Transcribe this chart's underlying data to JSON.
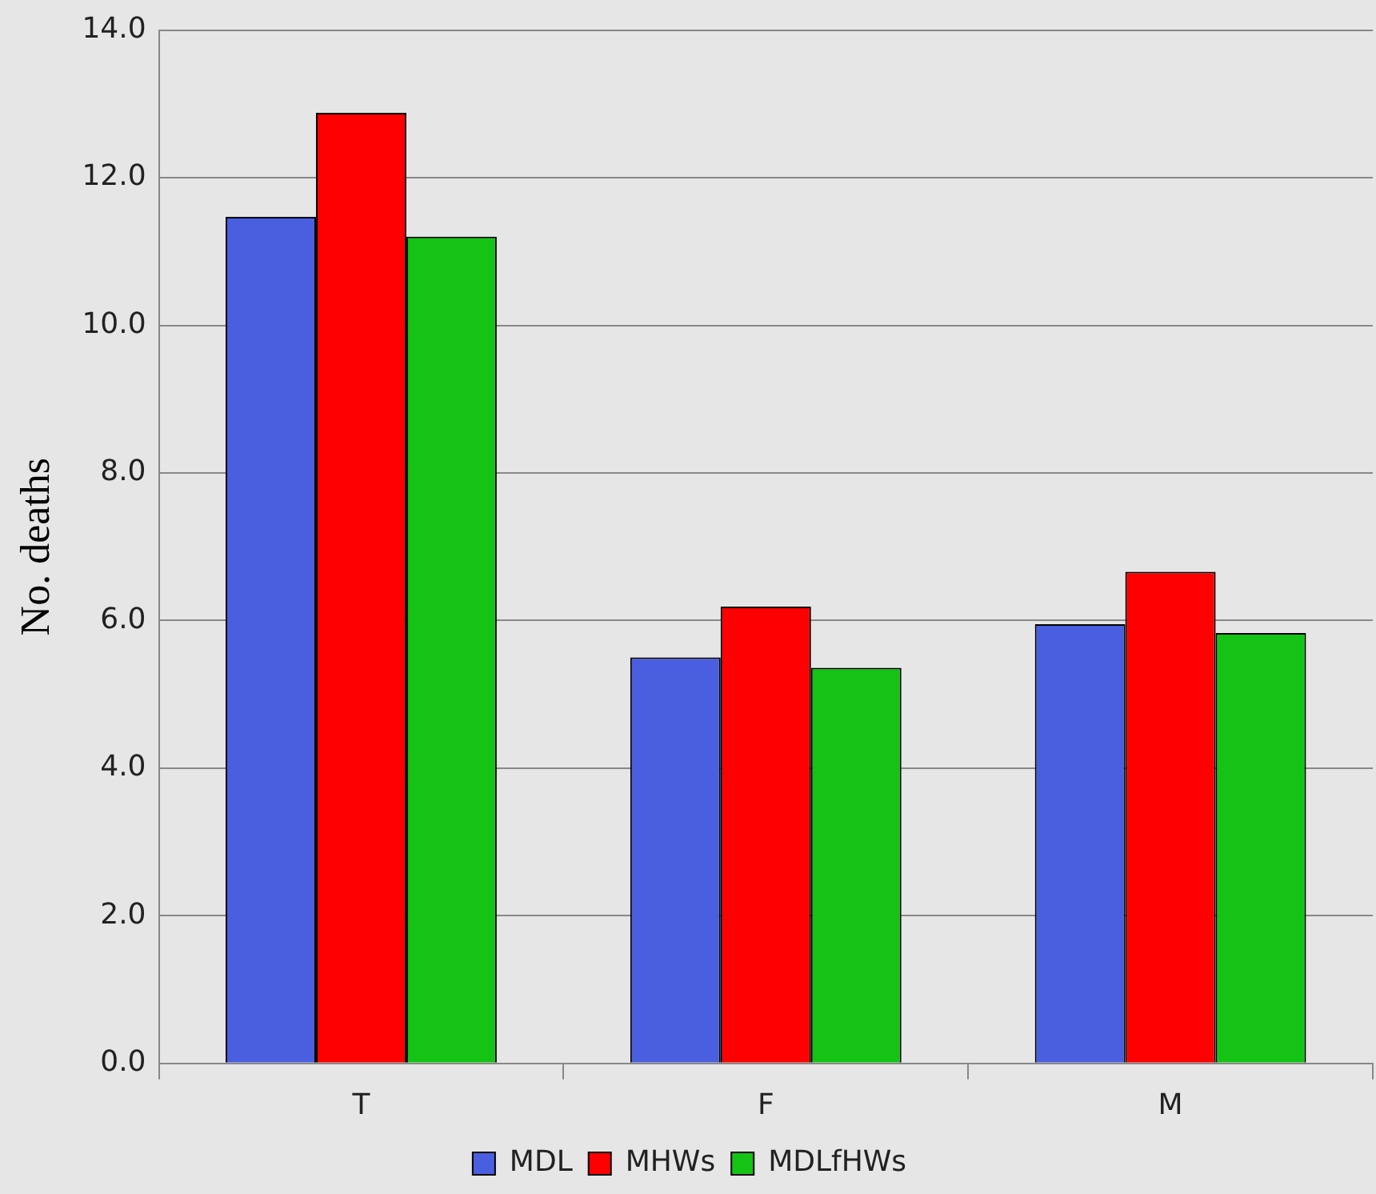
{
  "chart_data": {
    "type": "bar",
    "ylabel": "No. deaths",
    "categories": [
      "T",
      "F",
      "M"
    ],
    "series": [
      {
        "name": "MDL",
        "color": "#4a5ee0",
        "values": [
          11.47,
          5.5,
          5.95
        ]
      },
      {
        "name": "MHWs",
        "color": "#ff0000",
        "values": [
          12.88,
          6.19,
          6.66
        ]
      },
      {
        "name": "MDLfHWs",
        "color": "#14c314",
        "values": [
          11.2,
          5.36,
          5.83
        ]
      }
    ],
    "ylim": [
      0,
      14
    ],
    "yticks": [
      {
        "value": 0,
        "label": "0.0"
      },
      {
        "value": 2,
        "label": "2.0"
      },
      {
        "value": 4,
        "label": "4.0"
      },
      {
        "value": 6,
        "label": "6.0"
      },
      {
        "value": 8,
        "label": "8.0"
      },
      {
        "value": 10,
        "label": "10.0"
      },
      {
        "value": 12,
        "label": "12.0"
      },
      {
        "value": 14,
        "label": "14.0"
      }
    ],
    "grid": "y",
    "legend": "bottom"
  }
}
